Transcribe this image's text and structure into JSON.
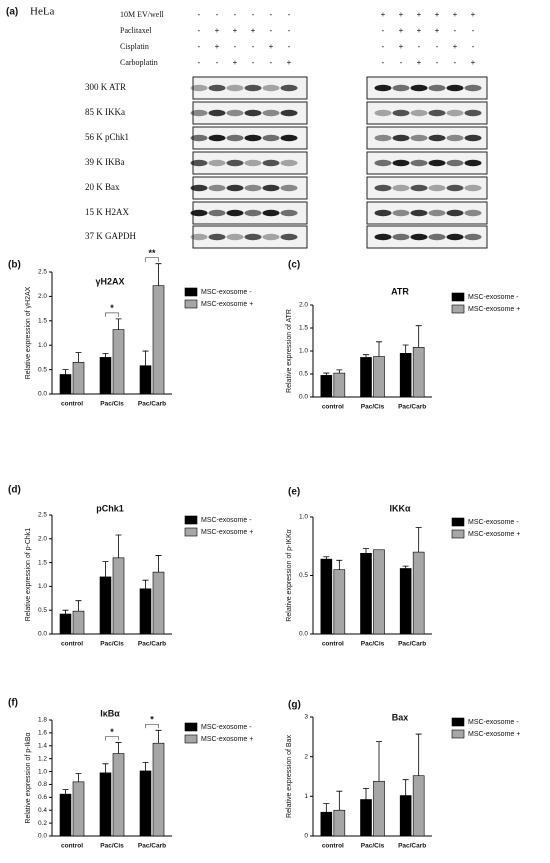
{
  "blot": {
    "panel": "(a)",
    "cell_line": "HeLa",
    "treatments": [
      {
        "name": "10M EV/well",
        "left": [
          "-",
          "-",
          "-",
          "-",
          "-",
          "-"
        ],
        "right": [
          "+",
          "+",
          "+",
          "+",
          "+",
          "+"
        ]
      },
      {
        "name": "Paclitaxel",
        "left": [
          "-",
          "+",
          "+",
          "+",
          "-",
          "-"
        ],
        "right": [
          "-",
          "+",
          "+",
          "+",
          "-",
          "-"
        ]
      },
      {
        "name": "Cisplatin",
        "left": [
          "-",
          "+",
          "-",
          "-",
          "+",
          "-"
        ],
        "right": [
          "-",
          "+",
          "-",
          "-",
          "+",
          "-"
        ]
      },
      {
        "name": "Carboplatin",
        "left": [
          "-",
          "-",
          "+",
          "-",
          "-",
          "+"
        ],
        "right": [
          "-",
          "-",
          "+",
          "-",
          "-",
          "+"
        ]
      }
    ],
    "markers": [
      "300 K ATR",
      "85 K IKKa",
      "56 K pChk1",
      "39 K IKBa",
      "20 K Bax",
      "15 K H2AX",
      "37 K GAPDH"
    ]
  },
  "chart_data": [
    {
      "type": "bar",
      "panel": "(b)",
      "title": "γH2AX",
      "y_label": "Relative expression of γH2AX",
      "categories": [
        "control",
        "Pac/Cis",
        "Pac/Carb"
      ],
      "series": [
        {
          "name": "MSC-exosome -",
          "color": "#000000",
          "values": [
            0.4,
            0.75,
            0.58
          ],
          "errors": [
            0.1,
            0.08,
            0.3
          ]
        },
        {
          "name": "MSC-exosome +",
          "color": "#a6a6a6",
          "values": [
            0.65,
            1.32,
            2.22
          ],
          "errors": [
            0.2,
            0.22,
            0.45
          ]
        }
      ],
      "significance": [
        null,
        "*",
        "**"
      ],
      "ylim": [
        0,
        2.5
      ],
      "yticks": [
        {
          "value": 0,
          "label": "0.0"
        },
        0.5,
        {
          "value": 1,
          "label": "1.0"
        },
        1.5,
        {
          "value": 2,
          "label": "2.0"
        },
        2.5
      ]
    },
    {
      "type": "bar",
      "panel": "(c)",
      "title": "ATR",
      "y_label": "Relative expression of ATR",
      "categories": [
        "control",
        "Pac/Cis",
        "Pac/Carb"
      ],
      "series": [
        {
          "name": "MSC-exosome -",
          "color": "#000000",
          "values": [
            0.47,
            0.86,
            0.95
          ],
          "errors": [
            0.05,
            0.06,
            0.18
          ]
        },
        {
          "name": "MSC-exosome +",
          "color": "#a6a6a6",
          "values": [
            0.52,
            0.88,
            1.08
          ],
          "errors": [
            0.07,
            0.32,
            0.47
          ]
        }
      ],
      "ylim": [
        0,
        2
      ],
      "yticks": [
        {
          "value": 0,
          "label": "0.0"
        },
        0.5,
        {
          "value": 1,
          "label": "1.0"
        },
        1.5,
        {
          "value": 2,
          "label": "2.0"
        }
      ]
    },
    {
      "type": "bar",
      "panel": "(d)",
      "title": "pChk1",
      "y_label": "Relative expression of p-Chk1",
      "categories": [
        "control",
        "Pac/Cis",
        "Pac/Carb"
      ],
      "series": [
        {
          "name": "MSC-exosome -",
          "color": "#000000",
          "values": [
            0.42,
            1.2,
            0.95
          ],
          "errors": [
            0.08,
            0.32,
            0.18
          ]
        },
        {
          "name": "MSC-exosome +",
          "color": "#a6a6a6",
          "values": [
            0.48,
            1.6,
            1.3
          ],
          "errors": [
            0.22,
            0.48,
            0.35
          ]
        }
      ],
      "ylim": [
        0,
        2.5
      ],
      "yticks": [
        {
          "value": 0,
          "label": "0.0"
        },
        0.5,
        {
          "value": 1,
          "label": "1.0"
        },
        1.5,
        {
          "value": 2,
          "label": "2.0"
        },
        2.5
      ]
    },
    {
      "type": "bar",
      "panel": "(e)",
      "title": "IKKα",
      "y_label": "Relative expression of p-IKKα",
      "categories": [
        "control",
        "Pac/Cis",
        "Pac/Carb"
      ],
      "series": [
        {
          "name": "MSC-exosome -",
          "color": "#000000",
          "values": [
            0.64,
            0.69,
            0.56
          ],
          "errors": [
            0.02,
            0.04,
            0.02
          ]
        },
        {
          "name": "MSC-exosome +",
          "color": "#a6a6a6",
          "values": [
            0.55,
            0.72,
            0.7
          ],
          "errors": [
            0.08,
            null,
            0.21
          ]
        }
      ],
      "ylim": [
        0,
        1
      ],
      "yticks": [
        {
          "value": 0,
          "label": "0.0"
        },
        0.5,
        {
          "value": 1,
          "label": "1.0"
        }
      ]
    },
    {
      "type": "bar",
      "panel": "(f)",
      "title": "IκBα",
      "y_label": "Relative expression of p-IkBα",
      "categories": [
        "control",
        "Pac/Cis",
        "Pac/Carb"
      ],
      "series": [
        {
          "name": "MSC-exosome -",
          "color": "#000000",
          "values": [
            0.65,
            0.98,
            1.01
          ],
          "errors": [
            0.07,
            0.14,
            0.13
          ]
        },
        {
          "name": "MSC-exosome +",
          "color": "#a6a6a6",
          "values": [
            0.84,
            1.28,
            1.44
          ],
          "errors": [
            0.13,
            0.17,
            0.2
          ]
        }
      ],
      "significance": [
        null,
        "*",
        "*"
      ],
      "ylim": [
        0,
        1.8
      ],
      "yticks": [
        {
          "value": 0,
          "label": "0.0"
        },
        0.2,
        0.4,
        0.6,
        0.8,
        {
          "value": 1,
          "label": "1.0"
        },
        1.2,
        1.4,
        1.6,
        1.8
      ]
    },
    {
      "type": "bar",
      "panel": "(g)",
      "title": "Bax",
      "y_label": "Relative expression of Bax",
      "categories": [
        "control",
        "Pac/Cis",
        "Pac/Carb"
      ],
      "series": [
        {
          "name": "MSC-exosome -",
          "color": "#000000",
          "values": [
            0.6,
            0.92,
            1.02
          ],
          "errors": [
            0.22,
            0.28,
            0.4
          ]
        },
        {
          "name": "MSC-exosome +",
          "color": "#a6a6a6",
          "values": [
            0.65,
            1.38,
            1.52
          ],
          "errors": [
            0.48,
            1.0,
            1.05
          ]
        }
      ],
      "ylim": [
        0,
        3
      ],
      "yticks": [
        0,
        1,
        2,
        3
      ]
    }
  ]
}
